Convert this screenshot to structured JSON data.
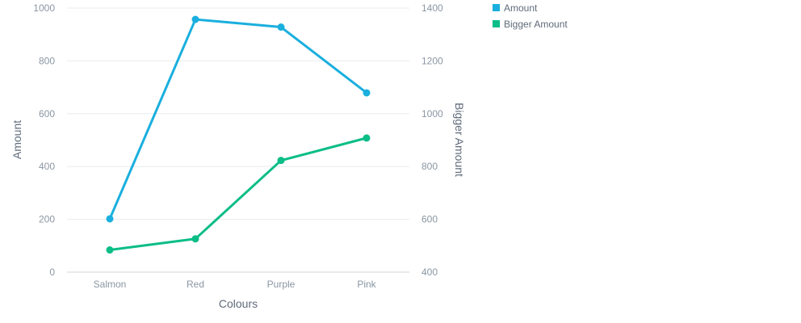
{
  "chart_data": {
    "type": "line",
    "categories": [
      "Salmon",
      "Red",
      "Purple",
      "Pink"
    ],
    "xlabel": "Colours",
    "ylabel": "Amount",
    "y2label": "Bigger Amount",
    "ylim": [
      0,
      1000
    ],
    "y2lim": [
      400,
      1400
    ],
    "yticks": [
      0,
      200,
      400,
      600,
      800,
      1000
    ],
    "y2ticks": [
      400,
      600,
      800,
      1000,
      1200,
      1400
    ],
    "grid": true,
    "legend_position": "top-right",
    "series": [
      {
        "name": "Amount",
        "axis": "left",
        "color": "#1aafde",
        "values": [
          202,
          957,
          928,
          679
        ]
      },
      {
        "name": "Bigger Amount",
        "axis": "right",
        "color": "#0bbd87",
        "values": [
          484,
          526,
          823,
          908
        ]
      }
    ]
  }
}
